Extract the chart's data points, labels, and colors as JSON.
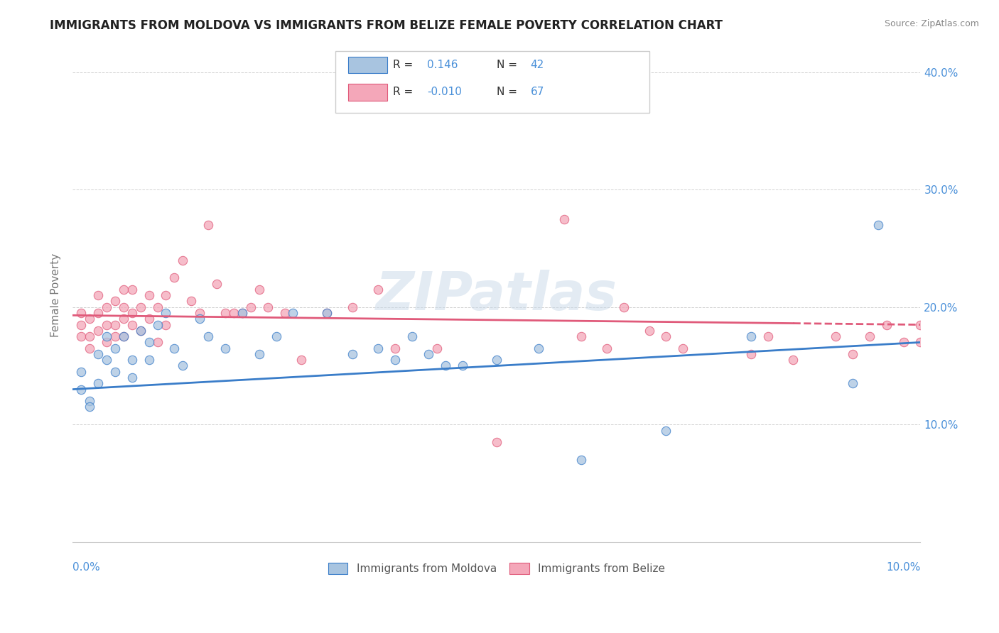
{
  "title": "IMMIGRANTS FROM MOLDOVA VS IMMIGRANTS FROM BELIZE FEMALE POVERTY CORRELATION CHART",
  "source": "Source: ZipAtlas.com",
  "ylabel": "Female Poverty",
  "xlim": [
    0.0,
    0.1
  ],
  "ylim": [
    0.0,
    0.42
  ],
  "yticks": [
    0.0,
    0.1,
    0.2,
    0.3,
    0.4
  ],
  "ytick_labels": [
    "",
    "10.0%",
    "20.0%",
    "30.0%",
    "40.0%"
  ],
  "legend_r_moldova": "0.146",
  "legend_n_moldova": "42",
  "legend_r_belize": "-0.010",
  "legend_n_belize": "67",
  "moldova_color": "#a8c4e0",
  "belize_color": "#f4a7b9",
  "moldova_line_color": "#3a7dc9",
  "belize_line_color": "#e05a7a",
  "moldova_scatter_x": [
    0.001,
    0.001,
    0.002,
    0.002,
    0.003,
    0.003,
    0.004,
    0.004,
    0.005,
    0.005,
    0.006,
    0.007,
    0.007,
    0.008,
    0.009,
    0.009,
    0.01,
    0.011,
    0.012,
    0.013,
    0.015,
    0.016,
    0.018,
    0.02,
    0.022,
    0.024,
    0.026,
    0.03,
    0.033,
    0.036,
    0.038,
    0.04,
    0.042,
    0.044,
    0.046,
    0.05,
    0.055,
    0.06,
    0.07,
    0.08,
    0.092,
    0.095
  ],
  "moldova_scatter_y": [
    0.13,
    0.145,
    0.12,
    0.115,
    0.16,
    0.135,
    0.175,
    0.155,
    0.145,
    0.165,
    0.175,
    0.155,
    0.14,
    0.18,
    0.17,
    0.155,
    0.185,
    0.195,
    0.165,
    0.15,
    0.19,
    0.175,
    0.165,
    0.195,
    0.16,
    0.175,
    0.195,
    0.195,
    0.16,
    0.165,
    0.155,
    0.175,
    0.16,
    0.15,
    0.15,
    0.155,
    0.165,
    0.07,
    0.095,
    0.175,
    0.135,
    0.27
  ],
  "belize_scatter_x": [
    0.001,
    0.001,
    0.001,
    0.002,
    0.002,
    0.002,
    0.003,
    0.003,
    0.003,
    0.004,
    0.004,
    0.004,
    0.005,
    0.005,
    0.005,
    0.006,
    0.006,
    0.006,
    0.006,
    0.007,
    0.007,
    0.007,
    0.008,
    0.008,
    0.009,
    0.009,
    0.01,
    0.01,
    0.011,
    0.011,
    0.012,
    0.013,
    0.014,
    0.015,
    0.016,
    0.017,
    0.018,
    0.019,
    0.02,
    0.021,
    0.022,
    0.023,
    0.025,
    0.027,
    0.03,
    0.033,
    0.036,
    0.038,
    0.043,
    0.05,
    0.058,
    0.06,
    0.063,
    0.065,
    0.068,
    0.07,
    0.072,
    0.08,
    0.082,
    0.085,
    0.09,
    0.092,
    0.094,
    0.096,
    0.098,
    0.1,
    0.1
  ],
  "belize_scatter_y": [
    0.175,
    0.185,
    0.195,
    0.165,
    0.175,
    0.19,
    0.18,
    0.195,
    0.21,
    0.17,
    0.185,
    0.2,
    0.175,
    0.185,
    0.205,
    0.175,
    0.19,
    0.2,
    0.215,
    0.185,
    0.195,
    0.215,
    0.18,
    0.2,
    0.19,
    0.21,
    0.17,
    0.2,
    0.185,
    0.21,
    0.225,
    0.24,
    0.205,
    0.195,
    0.27,
    0.22,
    0.195,
    0.195,
    0.195,
    0.2,
    0.215,
    0.2,
    0.195,
    0.155,
    0.195,
    0.2,
    0.215,
    0.165,
    0.165,
    0.085,
    0.275,
    0.175,
    0.165,
    0.2,
    0.18,
    0.175,
    0.165,
    0.16,
    0.175,
    0.155,
    0.175,
    0.16,
    0.175,
    0.185,
    0.17,
    0.17,
    0.185
  ]
}
